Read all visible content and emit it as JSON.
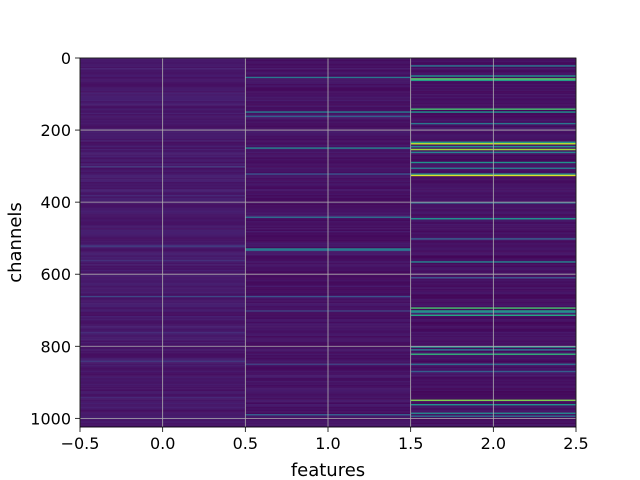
{
  "chart_data": {
    "type": "heatmap",
    "title": "",
    "xlabel": "features",
    "ylabel": "channels",
    "xlim": [
      -0.5,
      2.5
    ],
    "ylim": [
      1024,
      0
    ],
    "y_inverted": true,
    "grid": true,
    "colormap": "viridis",
    "x_ticks": [
      "−0.5",
      "0.0",
      "0.5",
      "1.0",
      "1.5",
      "2.0",
      "2.5"
    ],
    "x_tick_values": [
      -0.5,
      0.0,
      0.5,
      1.0,
      1.5,
      2.0,
      2.5
    ],
    "y_ticks": [
      "0",
      "200",
      "400",
      "600",
      "800",
      "1000"
    ],
    "y_tick_values": [
      0,
      200,
      400,
      600,
      800,
      1000
    ],
    "features": [
      0,
      1,
      2
    ],
    "rows": 1024,
    "background_level": [
      0.05,
      0.03,
      0.02
    ],
    "highlights": {
      "feature_0": [
        [
          300,
          0.18
        ],
        [
          380,
          0.14
        ],
        [
          520,
          0.2
        ],
        [
          560,
          0.16
        ],
        [
          660,
          0.22
        ],
        [
          760,
          0.15
        ],
        [
          840,
          0.18
        ],
        [
          940,
          0.14
        ]
      ],
      "feature_1": [
        [
          52,
          0.4
        ],
        [
          150,
          0.42
        ],
        [
          160,
          0.3
        ],
        [
          250,
          0.45
        ],
        [
          320,
          0.25
        ],
        [
          440,
          0.35
        ],
        [
          530,
          0.45
        ],
        [
          535,
          0.35
        ],
        [
          660,
          0.25
        ],
        [
          700,
          0.2
        ],
        [
          850,
          0.2
        ],
        [
          990,
          0.3
        ]
      ],
      "feature_2": [
        [
          20,
          0.4
        ],
        [
          50,
          0.5
        ],
        [
          56,
          0.75
        ],
        [
          62,
          0.55
        ],
        [
          140,
          0.7
        ],
        [
          150,
          0.5
        ],
        [
          180,
          0.4
        ],
        [
          232,
          0.55
        ],
        [
          238,
          0.9
        ],
        [
          244,
          0.5
        ],
        [
          255,
          0.85
        ],
        [
          262,
          0.45
        ],
        [
          290,
          0.5
        ],
        [
          305,
          0.4
        ],
        [
          320,
          0.45
        ],
        [
          327,
          0.95
        ],
        [
          400,
          0.35
        ],
        [
          445,
          0.5
        ],
        [
          500,
          0.3
        ],
        [
          565,
          0.45
        ],
        [
          610,
          0.25
        ],
        [
          695,
          0.7
        ],
        [
          700,
          0.55
        ],
        [
          705,
          0.4
        ],
        [
          715,
          0.6
        ],
        [
          800,
          0.5
        ],
        [
          810,
          0.4
        ],
        [
          820,
          0.65
        ],
        [
          850,
          0.35
        ],
        [
          870,
          0.3
        ],
        [
          950,
          0.8
        ],
        [
          960,
          0.5
        ],
        [
          985,
          0.45
        ],
        [
          995,
          0.35
        ]
      ]
    }
  }
}
